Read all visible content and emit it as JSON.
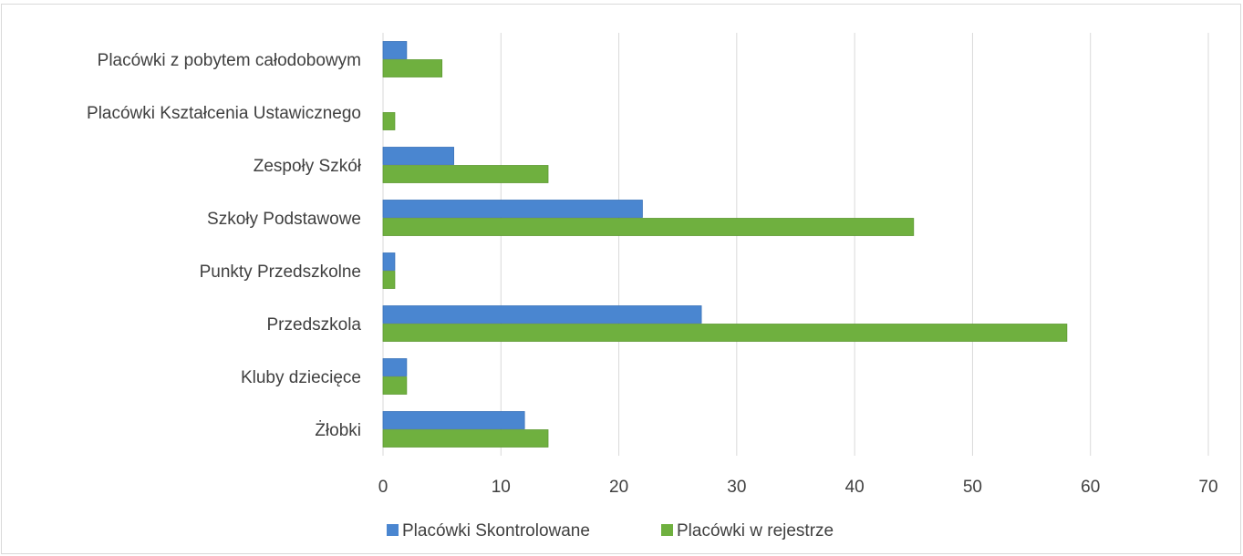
{
  "chart_data": {
    "type": "bar",
    "orientation": "horizontal",
    "categories": [
      "Placówki z pobytem całodobowym",
      "Placówki Kształcenia Ustawicznego",
      "Zespoły Szkół",
      "Szkoły Podstawowe",
      "Punkty Przedszkolne",
      "Przedszkola",
      "Kluby dziecięce",
      "Żłobki"
    ],
    "series": [
      {
        "name": "Placówki Skontrolowane",
        "color": "#4a86d0",
        "values": [
          2,
          0,
          6,
          22,
          1,
          27,
          2,
          12
        ]
      },
      {
        "name": "Placówki w rejestrze",
        "color": "#6fb03f",
        "values": [
          5,
          1,
          14,
          45,
          1,
          58,
          2,
          14
        ]
      }
    ],
    "xlim": [
      0,
      70
    ],
    "xticks": [
      "0",
      "10",
      "20",
      "30",
      "40",
      "50",
      "60",
      "70"
    ],
    "grid": true,
    "legend": "bottom"
  }
}
